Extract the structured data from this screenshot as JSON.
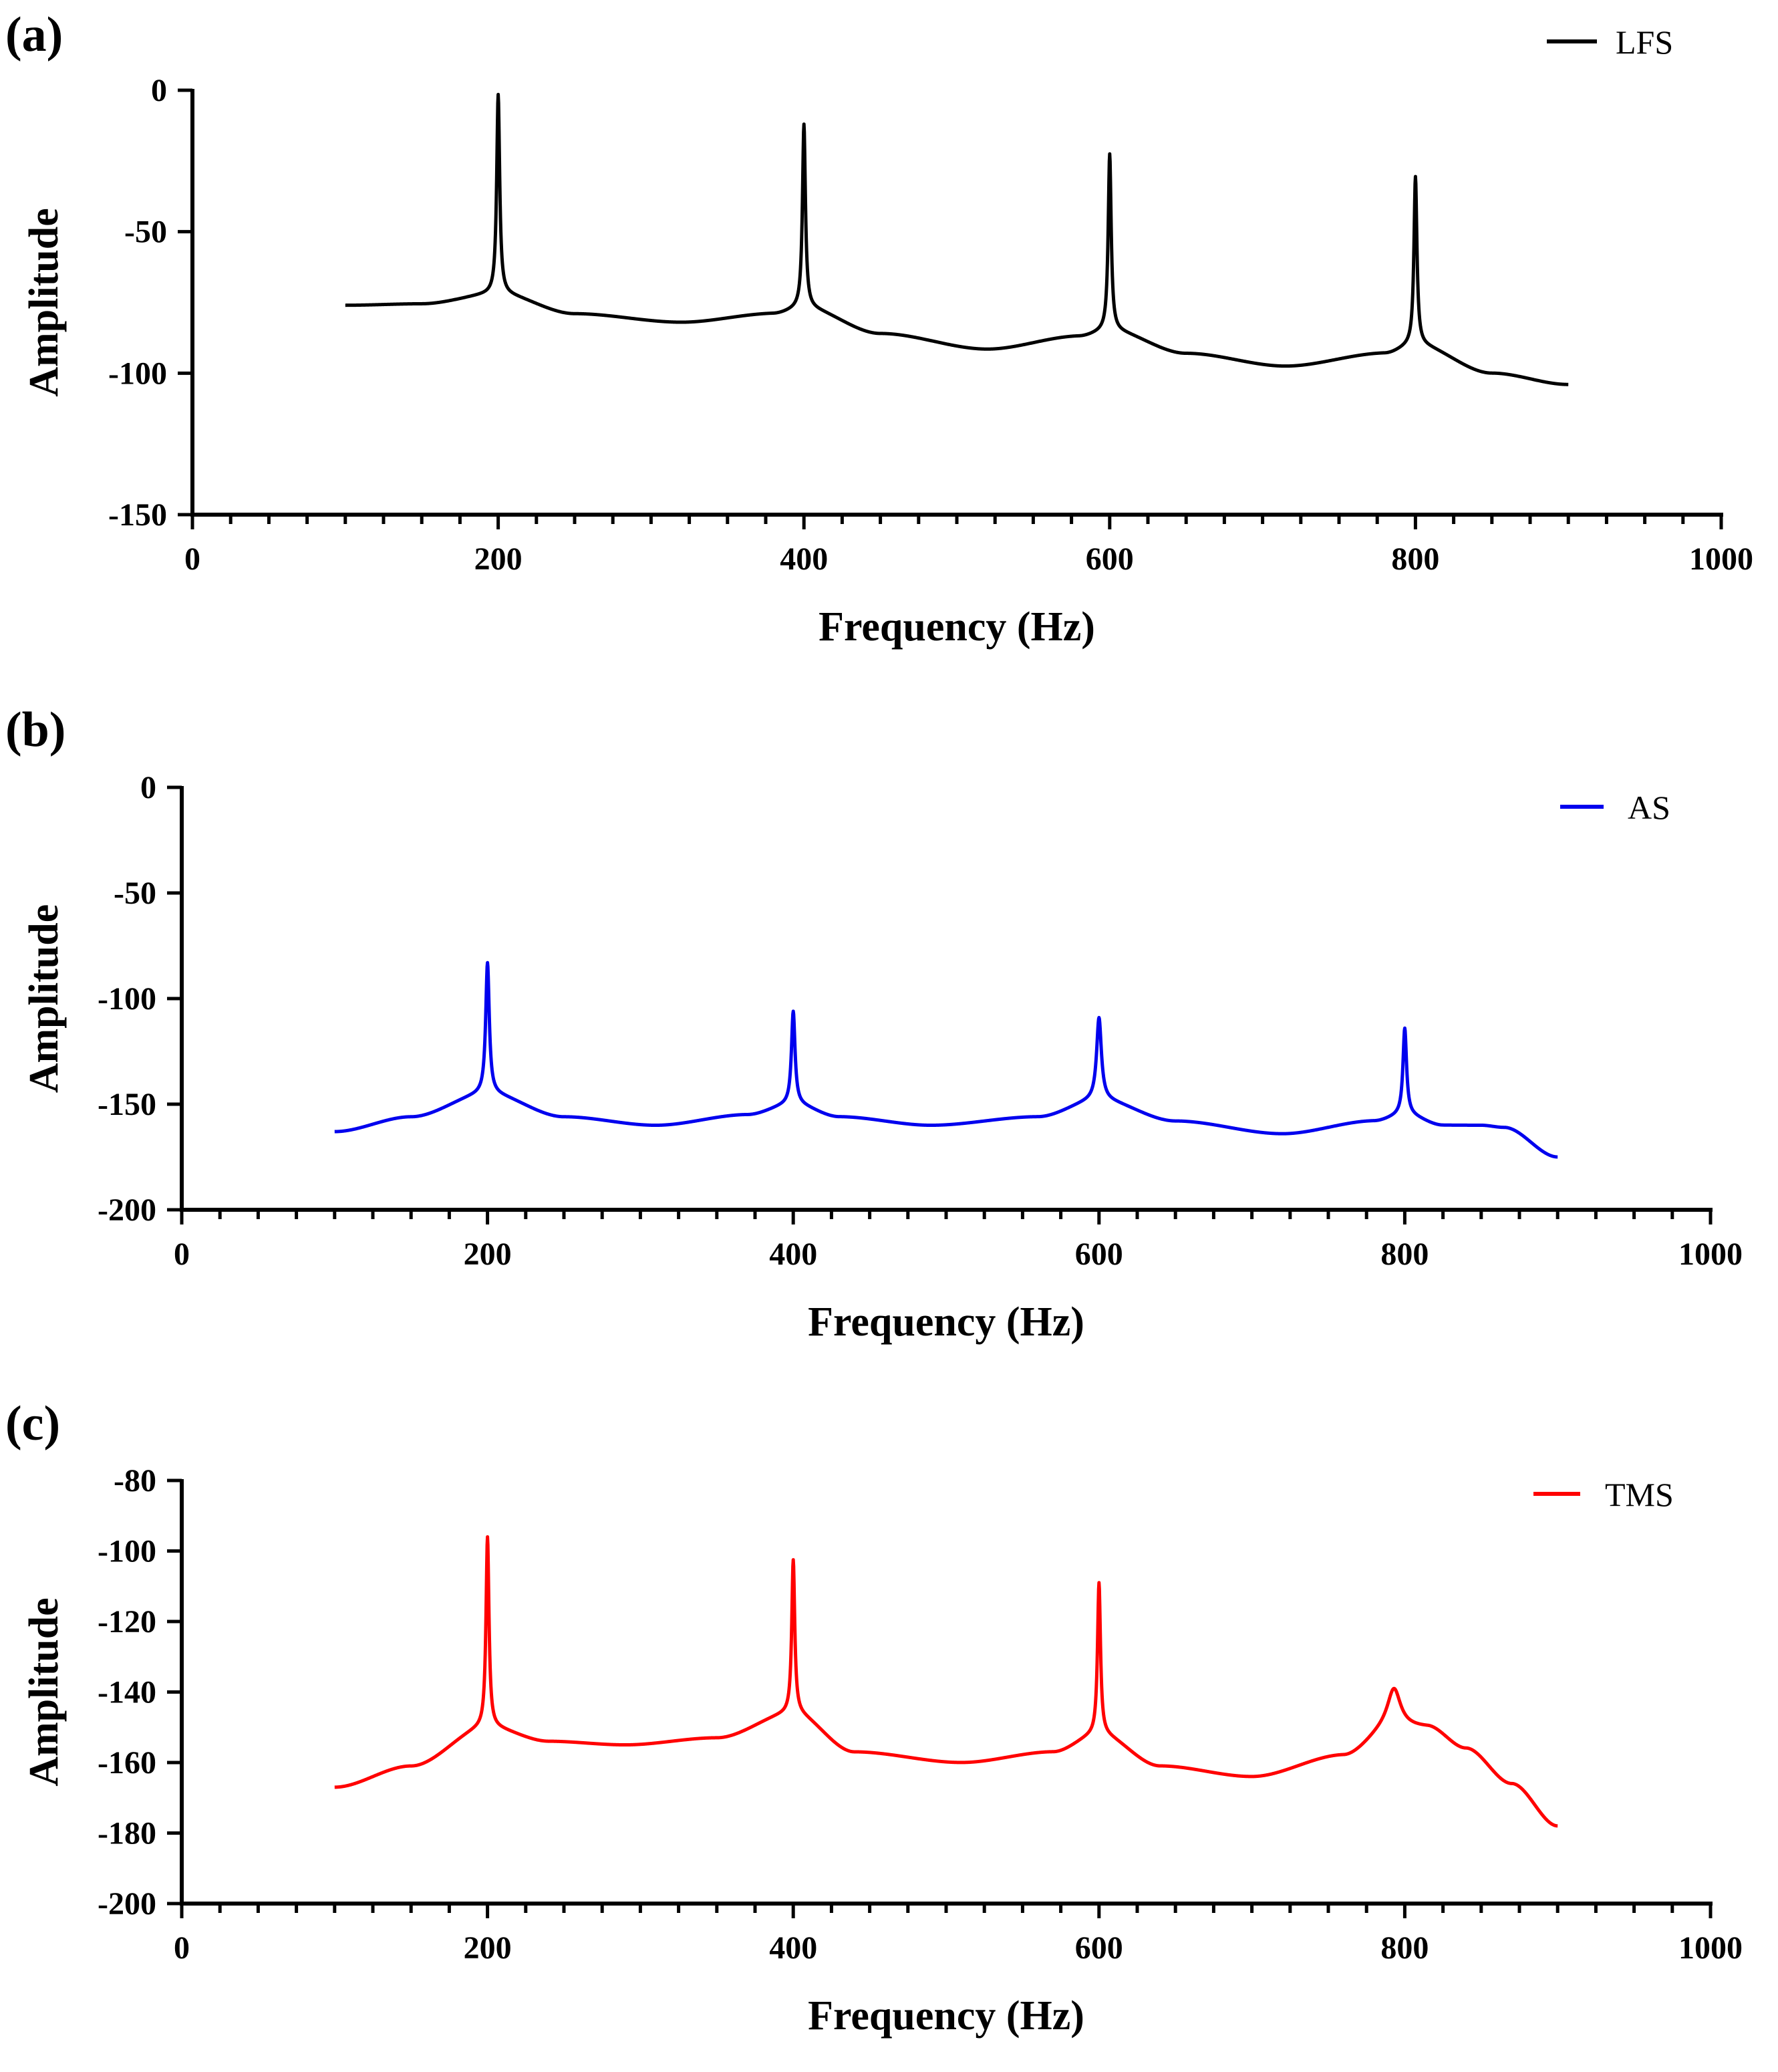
{
  "chart_data": [
    {
      "type": "line",
      "panel_label": "(a)",
      "xlabel": "Frequency (Hz)",
      "ylabel": "Amplitude",
      "xlim": [
        0,
        1000
      ],
      "ylim": [
        -150,
        0
      ],
      "xticks": [
        0,
        200,
        400,
        600,
        800,
        1000
      ],
      "yticks": [
        0,
        -50,
        -100,
        -150
      ],
      "grid": false,
      "legend_position": "top-right",
      "series": [
        {
          "name": "LFS",
          "color": "#000000",
          "baseline": [
            [
              100,
              -76
            ],
            [
              150,
              -75.5
            ],
            [
              200,
              -72
            ],
            [
              250,
              -79
            ],
            [
              320,
              -82
            ],
            [
              380,
              -79
            ],
            [
              400,
              -77
            ],
            [
              450,
              -86
            ],
            [
              520,
              -91.5
            ],
            [
              580,
              -87
            ],
            [
              600,
              -85
            ],
            [
              650,
              -93
            ],
            [
              715,
              -97.5
            ],
            [
              780,
              -93
            ],
            [
              800,
              -90
            ],
            [
              850,
              -100
            ],
            [
              900,
              -104
            ]
          ],
          "peaks": [
            {
              "x": 200,
              "y": -1.5,
              "width": 5
            },
            {
              "x": 400,
              "y": -12,
              "width": 5
            },
            {
              "x": 600,
              "y": -22.5,
              "width": 5
            },
            {
              "x": 800,
              "y": -30.5,
              "width": 5
            }
          ]
        }
      ]
    },
    {
      "type": "line",
      "panel_label": "(b)",
      "xlabel": "Frequency (Hz)",
      "ylabel": "Amplitude",
      "xlim": [
        0,
        1000
      ],
      "ylim": [
        -200,
        0
      ],
      "xticks": [
        0,
        200,
        400,
        600,
        800,
        1000
      ],
      "yticks": [
        0,
        -50,
        -100,
        -150,
        -200
      ],
      "grid": false,
      "legend_position": "top-right",
      "series": [
        {
          "name": "AS",
          "color": "#0000ee",
          "baseline": [
            [
              100,
              -163
            ],
            [
              150,
              -156
            ],
            [
              200,
              -145
            ],
            [
              250,
              -156
            ],
            [
              310,
              -160
            ],
            [
              370,
              -155
            ],
            [
              400,
              -150
            ],
            [
              430,
              -156
            ],
            [
              490,
              -160
            ],
            [
              560,
              -156
            ],
            [
              600,
              -148
            ],
            [
              650,
              -158
            ],
            [
              720,
              -164
            ],
            [
              780,
              -158
            ],
            [
              800,
              -155
            ],
            [
              825,
              -160
            ],
            [
              850,
              -160
            ],
            [
              865,
              -161
            ],
            [
              900,
              -175
            ]
          ],
          "peaks": [
            {
              "x": 200,
              "y": -83,
              "width": 6
            },
            {
              "x": 400,
              "y": -106,
              "width": 6
            },
            {
              "x": 600,
              "y": -109,
              "width": 8
            },
            {
              "x": 800,
              "y": -114,
              "width": 6
            }
          ]
        }
      ]
    },
    {
      "type": "line",
      "panel_label": "(c)",
      "xlabel": "Frequency (Hz)",
      "ylabel": "Amplitude",
      "xlim": [
        0,
        1000
      ],
      "ylim": [
        -200,
        -80
      ],
      "xticks": [
        0,
        200,
        400,
        600,
        800,
        1000
      ],
      "yticks": [
        -80,
        -100,
        -120,
        -140,
        -160,
        -180,
        -200
      ],
      "grid": false,
      "legend_position": "top-right",
      "series": [
        {
          "name": "TMS",
          "color": "#ff0000",
          "baseline": [
            [
              100,
              -167
            ],
            [
              150,
              -161
            ],
            [
              200,
              -150
            ],
            [
              240,
              -154
            ],
            [
              290,
              -155
            ],
            [
              350,
              -153
            ],
            [
              400,
              -146
            ],
            [
              440,
              -157
            ],
            [
              510,
              -160
            ],
            [
              570,
              -157
            ],
            [
              600,
              -152
            ],
            [
              640,
              -161
            ],
            [
              700,
              -164
            ],
            [
              760,
              -158
            ],
            [
              792,
              -150
            ],
            [
              815,
              -150
            ],
            [
              840,
              -156
            ],
            [
              870,
              -166
            ],
            [
              900,
              -178
            ]
          ],
          "peaks": [
            {
              "x": 200,
              "y": -96,
              "width": 5
            },
            {
              "x": 400,
              "y": -102.5,
              "width": 5
            },
            {
              "x": 600,
              "y": -109,
              "width": 5
            },
            {
              "x": 793,
              "y": -139,
              "width": 22
            }
          ]
        }
      ]
    }
  ]
}
